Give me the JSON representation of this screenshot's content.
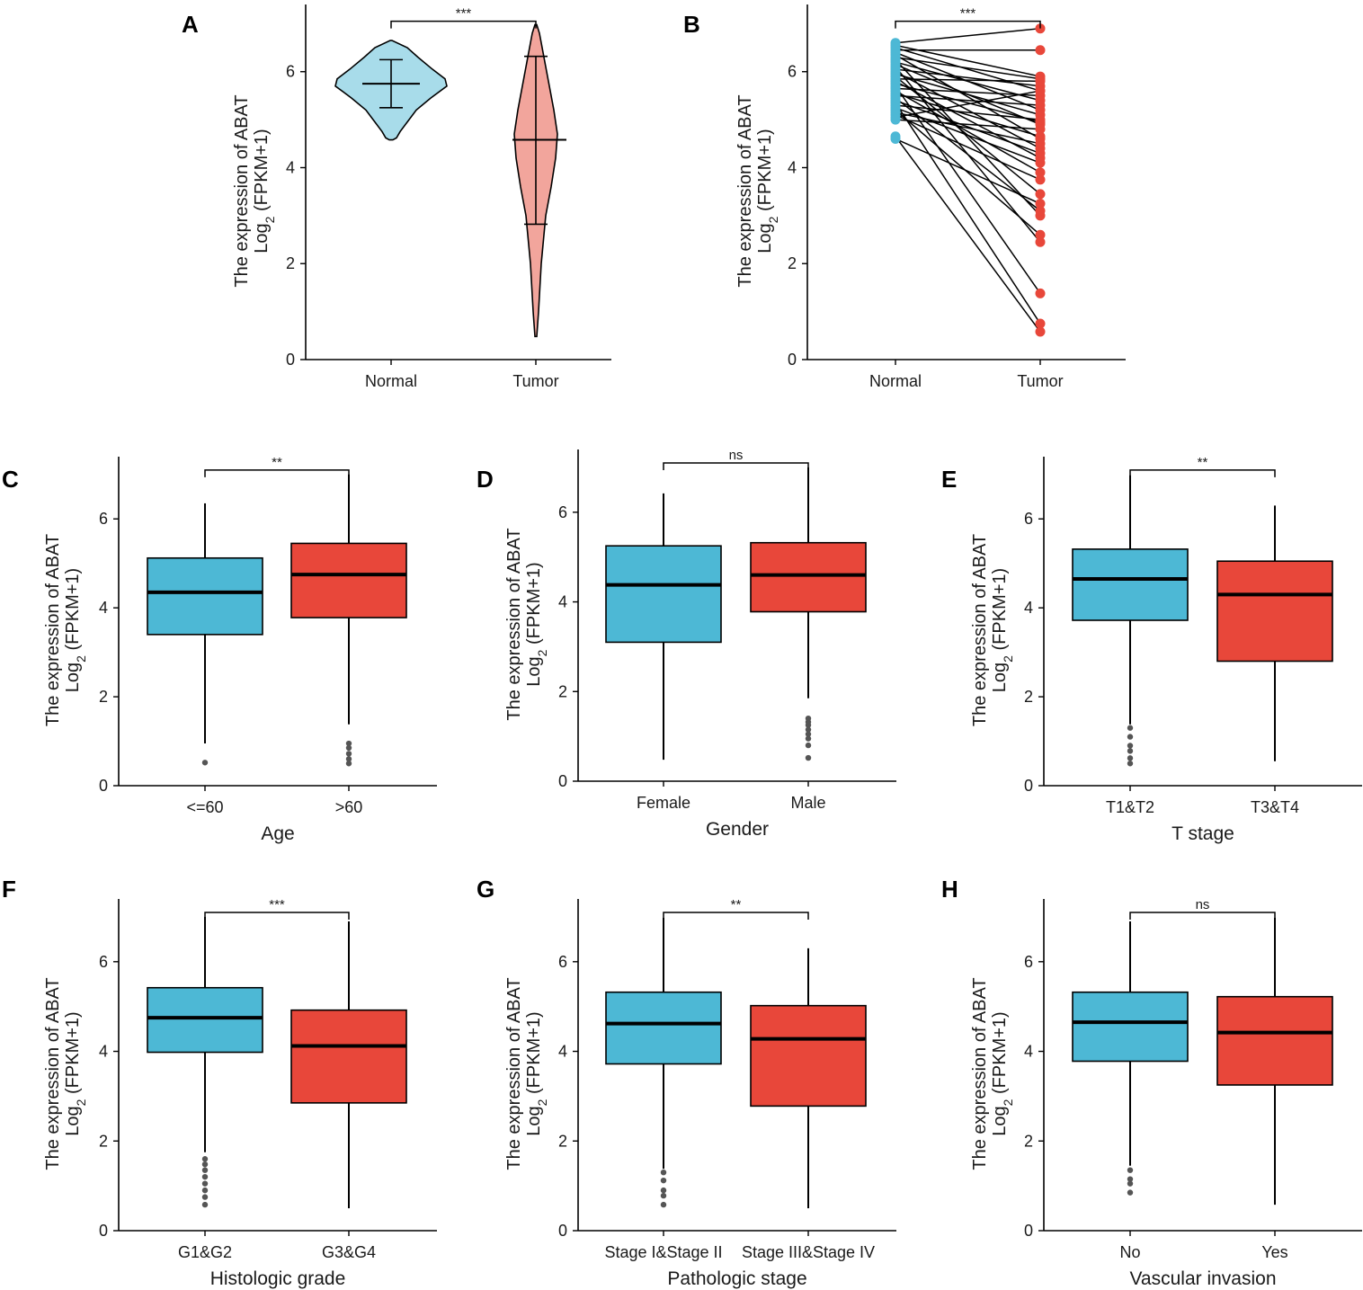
{
  "colors": {
    "normal_violin": "#a8dcea",
    "tumor_violin": "#f2a59c",
    "blue": "#4db8d5",
    "red": "#e8473a",
    "axis": "#000000",
    "outlier": "#555555"
  },
  "ylabel_line1": "The expression of ABAT",
  "ylabel_line2": "Log",
  "ylabel_sub": "2",
  "ylabel_line2_rest": " (FPKM+1)",
  "chart_data": [
    {
      "id": "A",
      "letter": "A",
      "type": "violin",
      "categories": [
        "Normal",
        "Tumor"
      ],
      "yticks": [
        "0",
        "2",
        "4",
        "6"
      ],
      "ylim": [
        0,
        7.4
      ],
      "significance": "***",
      "groups": [
        {
          "name": "Normal",
          "median": 5.75,
          "q_low": 5.25,
          "q_high": 6.25,
          "min": 4.58,
          "max": 6.65
        },
        {
          "name": "Tumor",
          "median": 4.58,
          "q_low": 2.82,
          "q_high": 6.32,
          "min": 0.48,
          "max": 6.98
        }
      ]
    },
    {
      "id": "B",
      "letter": "B",
      "type": "paired-scatter",
      "categories": [
        "Normal",
        "Tumor"
      ],
      "yticks": [
        "0",
        "2",
        "4",
        "6"
      ],
      "ylim": [
        0,
        7.4
      ],
      "significance": "***",
      "pairs": [
        [
          6.6,
          6.9
        ],
        [
          6.55,
          5.9
        ],
        [
          6.5,
          5.6
        ],
        [
          6.45,
          6.45
        ],
        [
          6.4,
          5.2
        ],
        [
          6.35,
          4.6
        ],
        [
          6.3,
          5.85
        ],
        [
          6.25,
          3.0
        ],
        [
          6.2,
          5.4
        ],
        [
          6.15,
          4.9
        ],
        [
          6.1,
          2.45
        ],
        [
          6.05,
          5.7
        ],
        [
          6.0,
          4.4
        ],
        [
          5.95,
          5.1
        ],
        [
          5.9,
          3.45
        ],
        [
          5.85,
          5.8
        ],
        [
          5.8,
          4.2
        ],
        [
          5.75,
          4.95
        ],
        [
          5.7,
          1.38
        ],
        [
          5.65,
          5.5
        ],
        [
          5.6,
          3.9
        ],
        [
          5.55,
          4.65
        ],
        [
          5.5,
          5.3
        ],
        [
          5.45,
          3.1
        ],
        [
          5.4,
          4.3
        ],
        [
          5.35,
          0.75
        ],
        [
          5.3,
          5.0
        ],
        [
          5.25,
          4.1
        ],
        [
          5.2,
          2.6
        ],
        [
          5.15,
          4.5
        ],
        [
          5.1,
          3.75
        ],
        [
          5.05,
          5.6
        ],
        [
          5.0,
          4.8
        ],
        [
          4.65,
          0.58
        ],
        [
          4.6,
          3.25
        ]
      ]
    },
    {
      "id": "C",
      "letter": "C",
      "type": "box",
      "categories": [
        "<=60",
        ">60"
      ],
      "xlabel": "Age",
      "yticks": [
        "0",
        "2",
        "4",
        "6"
      ],
      "ylim": [
        0,
        7.4
      ],
      "significance": "**",
      "boxes": [
        {
          "name": "<=60",
          "q1": 3.4,
          "median": 4.35,
          "q3": 5.12,
          "whisker_low": 0.95,
          "whisker_high": 6.35,
          "outliers": [
            0.52
          ],
          "color": "blue"
        },
        {
          "name": ">60",
          "q1": 3.78,
          "median": 4.75,
          "q3": 5.45,
          "whisker_low": 1.38,
          "whisker_high": 7.0,
          "outliers": [
            0.5,
            0.6,
            0.72,
            0.85,
            0.95
          ],
          "color": "red"
        }
      ]
    },
    {
      "id": "D",
      "letter": "D",
      "type": "box",
      "categories": [
        "Female",
        "Male"
      ],
      "xlabel": "Gender",
      "yticks": [
        "0",
        "2",
        "4",
        "6"
      ],
      "ylim": [
        0,
        7.4
      ],
      "significance": "ns",
      "boxes": [
        {
          "name": "Female",
          "q1": 3.1,
          "median": 4.38,
          "q3": 5.25,
          "whisker_low": 0.48,
          "whisker_high": 6.42,
          "outliers": [],
          "color": "blue"
        },
        {
          "name": "Male",
          "q1": 3.78,
          "median": 4.6,
          "q3": 5.32,
          "whisker_low": 1.85,
          "whisker_high": 7.0,
          "outliers": [
            0.52,
            0.8,
            0.95,
            1.05,
            1.15,
            1.25,
            1.32,
            1.4
          ],
          "color": "red"
        }
      ]
    },
    {
      "id": "E",
      "letter": "E",
      "type": "box",
      "categories": [
        "T1&T2",
        "T3&T4"
      ],
      "xlabel": "T stage",
      "yticks": [
        "0",
        "2",
        "4",
        "6"
      ],
      "ylim": [
        0,
        7.4
      ],
      "significance": "**",
      "boxes": [
        {
          "name": "T1&T2",
          "q1": 3.72,
          "median": 4.65,
          "q3": 5.32,
          "whisker_low": 1.38,
          "whisker_high": 6.98,
          "outliers": [
            0.5,
            0.62,
            0.78,
            0.9,
            1.1,
            1.3
          ],
          "color": "blue"
        },
        {
          "name": "T3&T4",
          "q1": 2.8,
          "median": 4.3,
          "q3": 5.05,
          "whisker_low": 0.55,
          "whisker_high": 6.3,
          "outliers": [],
          "color": "red"
        }
      ]
    },
    {
      "id": "F",
      "letter": "F",
      "type": "box",
      "categories": [
        "G1&G2",
        "G3&G4"
      ],
      "xlabel": "Histologic grade",
      "yticks": [
        "0",
        "2",
        "4",
        "6"
      ],
      "ylim": [
        0,
        7.4
      ],
      "significance": "***",
      "boxes": [
        {
          "name": "G1&G2",
          "q1": 3.98,
          "median": 4.75,
          "q3": 5.42,
          "whisker_low": 1.75,
          "whisker_high": 7.0,
          "outliers": [
            0.58,
            0.75,
            0.9,
            1.05,
            1.2,
            1.35,
            1.48,
            1.6
          ],
          "color": "blue"
        },
        {
          "name": "G3&G4",
          "q1": 2.85,
          "median": 4.12,
          "q3": 4.92,
          "whisker_low": 0.5,
          "whisker_high": 6.9,
          "outliers": [],
          "color": "red"
        }
      ]
    },
    {
      "id": "G",
      "letter": "G",
      "type": "box",
      "categories": [
        "Stage I&Stage II",
        "Stage III&Stage IV"
      ],
      "xlabel": "Pathologic stage",
      "yticks": [
        "0",
        "2",
        "4",
        "6"
      ],
      "ylim": [
        0,
        7.4
      ],
      "significance": "**",
      "boxes": [
        {
          "name": "Stage I&Stage II",
          "q1": 3.72,
          "median": 4.62,
          "q3": 5.32,
          "whisker_low": 1.38,
          "whisker_high": 6.98,
          "outliers": [
            0.58,
            0.78,
            0.9,
            1.12,
            1.3
          ],
          "color": "blue"
        },
        {
          "name": "Stage III&Stage IV",
          "q1": 2.78,
          "median": 4.28,
          "q3": 5.02,
          "whisker_low": 0.5,
          "whisker_high": 6.3,
          "outliers": [],
          "color": "red"
        }
      ]
    },
    {
      "id": "H",
      "letter": "H",
      "type": "box",
      "categories": [
        "No",
        "Yes"
      ],
      "xlabel": "Vascular invasion",
      "yticks": [
        "0",
        "2",
        "4",
        "6"
      ],
      "ylim": [
        0,
        7.4
      ],
      "significance": "ns",
      "boxes": [
        {
          "name": "No",
          "q1": 3.78,
          "median": 4.65,
          "q3": 5.32,
          "whisker_low": 1.45,
          "whisker_high": 6.9,
          "outliers": [
            0.85,
            1.05,
            1.15,
            1.35
          ],
          "color": "blue"
        },
        {
          "name": "Yes",
          "q1": 3.25,
          "median": 4.42,
          "q3": 5.22,
          "whisker_low": 0.58,
          "whisker_high": 6.98,
          "outliers": [],
          "color": "red"
        }
      ]
    }
  ]
}
